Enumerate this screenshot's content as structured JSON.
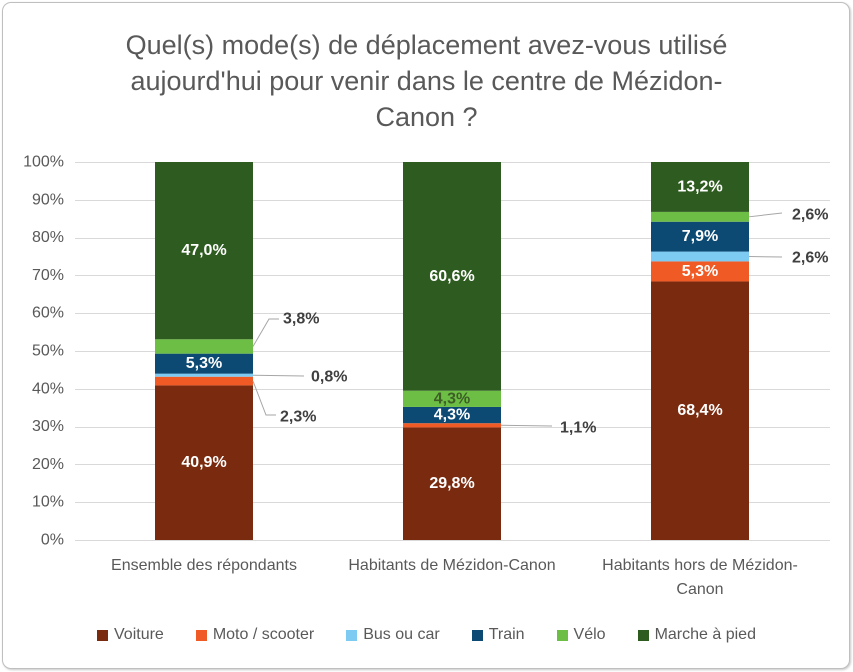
{
  "chart_data": {
    "type": "bar",
    "stacked": true,
    "title": "Quel(s) mode(s) de déplacement avez-vous utilisé\naujourd'hui pour venir dans le centre de Mézidon-\nCanon ?",
    "categories": [
      "Ensemble des répondants",
      "Habitants de Mézidon-Canon",
      "Habitants hors de Mézidon-Canon"
    ],
    "series": [
      {
        "name": "Voiture",
        "color": "#7A2A0E",
        "values": [
          40.9,
          29.8,
          68.4
        ],
        "labels": [
          "40,9%",
          "29,8%",
          "68,4%"
        ]
      },
      {
        "name": "Moto / scooter",
        "color": "#F05A24",
        "values": [
          2.3,
          1.1,
          5.3
        ],
        "labels": [
          "2,3%",
          "1,1%",
          "5,3%"
        ]
      },
      {
        "name": "Bus ou car",
        "color": "#7DCBF2",
        "values": [
          0.8,
          null,
          2.6
        ],
        "labels": [
          "0,8%",
          null,
          "2,6%"
        ]
      },
      {
        "name": "Train",
        "color": "#0C4A74",
        "values": [
          5.3,
          4.3,
          7.9
        ],
        "labels": [
          "5,3%",
          "4,3%",
          "7,9%"
        ]
      },
      {
        "name": "Vélo",
        "color": "#6DBE45",
        "values": [
          3.8,
          4.3,
          2.6
        ],
        "labels": [
          "3,8%",
          "4,3%",
          "2,6%"
        ]
      },
      {
        "name": "Marche à pied",
        "color": "#2E5B1F",
        "values": [
          47.0,
          60.6,
          13.2
        ],
        "labels": [
          "47,0%",
          "60,6%",
          "13,2%"
        ]
      }
    ],
    "ylim": [
      0,
      100
    ],
    "y_tick_labels": [
      "0%",
      "10%",
      "20%",
      "30%",
      "40%",
      "50%",
      "60%",
      "70%",
      "80%",
      "90%",
      "100%"
    ],
    "grid": true,
    "legend": "bottom"
  }
}
